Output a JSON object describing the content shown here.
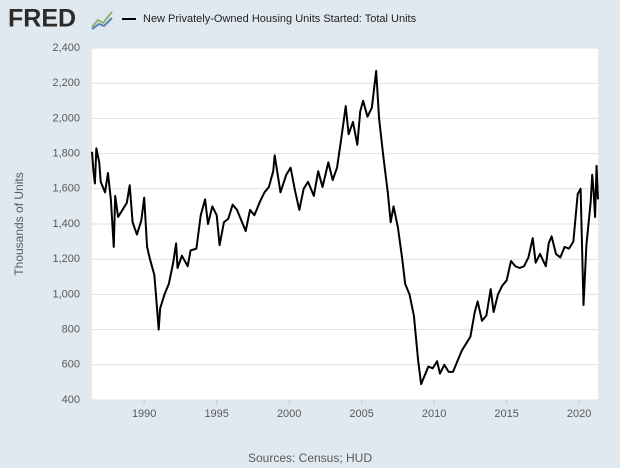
{
  "brand": "FRED",
  "chart_data": {
    "type": "line",
    "y_axis_label": "Thousands of Units",
    "source": "Sources: Census; HUD",
    "series": [
      {
        "name": "New Privately-Owned Housing Units Started: Total Units",
        "color": "#000000",
        "x": [
          1986.4,
          1986.5,
          1986.6,
          1986.7,
          1986.9,
          1987.0,
          1987.3,
          1987.5,
          1987.7,
          1987.9,
          1988.0,
          1988.2,
          1988.5,
          1988.8,
          1989.0,
          1989.2,
          1989.5,
          1989.8,
          1990.0,
          1990.2,
          1990.4,
          1990.7,
          1990.8,
          1991.0,
          1991.1,
          1991.4,
          1991.7,
          1992.0,
          1992.2,
          1992.3,
          1992.6,
          1993.0,
          1993.2,
          1993.6,
          1993.9,
          1994.2,
          1994.4,
          1994.7,
          1995.0,
          1995.2,
          1995.5,
          1995.8,
          1996.1,
          1996.4,
          1996.7,
          1997.0,
          1997.3,
          1997.6,
          1998.0,
          1998.3,
          1998.6,
          1998.9,
          1999.0,
          1999.4,
          1999.8,
          2000.1,
          2000.4,
          2000.7,
          2001.0,
          2001.3,
          2001.7,
          2002.0,
          2002.3,
          2002.7,
          2003.0,
          2003.3,
          2003.6,
          2003.9,
          2004.1,
          2004.4,
          2004.7,
          2004.9,
          2005.1,
          2005.4,
          2005.7,
          2006.0,
          2006.2,
          2006.5,
          2006.8,
          2007.0,
          2007.2,
          2007.5,
          2007.8,
          2008.0,
          2008.3,
          2008.6,
          2008.9,
          2009.1,
          2009.3,
          2009.6,
          2009.9,
          2010.2,
          2010.4,
          2010.7,
          2011.0,
          2011.3,
          2011.6,
          2011.9,
          2012.2,
          2012.5,
          2012.8,
          2013.0,
          2013.3,
          2013.6,
          2013.9,
          2014.1,
          2014.4,
          2014.7,
          2015.0,
          2015.3,
          2015.6,
          2015.9,
          2016.2,
          2016.5,
          2016.8,
          2017.0,
          2017.3,
          2017.7,
          2017.9,
          2018.1,
          2018.4,
          2018.7,
          2019.0,
          2019.3,
          2019.6,
          2019.9,
          2020.1,
          2020.3,
          2020.5,
          2020.8,
          2020.9,
          2021.0,
          2021.1,
          2021.2,
          2021.3
        ],
        "values": [
          1810,
          1700,
          1630,
          1830,
          1750,
          1640,
          1580,
          1690,
          1540,
          1270,
          1560,
          1440,
          1480,
          1520,
          1620,
          1410,
          1340,
          1420,
          1550,
          1270,
          1200,
          1110,
          1010,
          800,
          920,
          1000,
          1060,
          1180,
          1290,
          1150,
          1220,
          1160,
          1250,
          1260,
          1450,
          1540,
          1400,
          1500,
          1450,
          1280,
          1410,
          1430,
          1510,
          1480,
          1420,
          1360,
          1480,
          1450,
          1530,
          1580,
          1610,
          1700,
          1790,
          1580,
          1680,
          1720,
          1590,
          1480,
          1600,
          1640,
          1560,
          1700,
          1610,
          1750,
          1650,
          1720,
          1890,
          2070,
          1910,
          1980,
          1850,
          2040,
          2100,
          2010,
          2060,
          2270,
          2000,
          1780,
          1580,
          1410,
          1500,
          1380,
          1200,
          1060,
          1000,
          880,
          620,
          490,
          530,
          590,
          580,
          620,
          550,
          600,
          560,
          560,
          620,
          680,
          720,
          760,
          900,
          960,
          850,
          880,
          1030,
          900,
          1000,
          1050,
          1080,
          1190,
          1160,
          1150,
          1160,
          1210,
          1320,
          1180,
          1230,
          1160,
          1290,
          1330,
          1230,
          1210,
          1270,
          1260,
          1300,
          1570,
          1600,
          940,
          1280,
          1530,
          1680,
          1580,
          1440,
          1730,
          1540
        ]
      }
    ],
    "xlim": [
      1986.4,
      2021.3
    ],
    "xticks": [
      1990,
      1995,
      2000,
      2005,
      2010,
      2015,
      2020
    ],
    "ylim": [
      400,
      2400
    ],
    "yticks": [
      400,
      600,
      800,
      {
        "value": 1000,
        "label": "1,000"
      },
      {
        "value": 1200,
        "label": "1,200"
      },
      {
        "value": 1400,
        "label": "1,400"
      },
      {
        "value": 1600,
        "label": "1,600"
      },
      {
        "value": 1800,
        "label": "1,800"
      },
      {
        "value": 2000,
        "label": "2,000"
      },
      {
        "value": 2200,
        "label": "2,200"
      },
      {
        "value": 2400,
        "label": "2,400"
      }
    ],
    "grid": true
  }
}
